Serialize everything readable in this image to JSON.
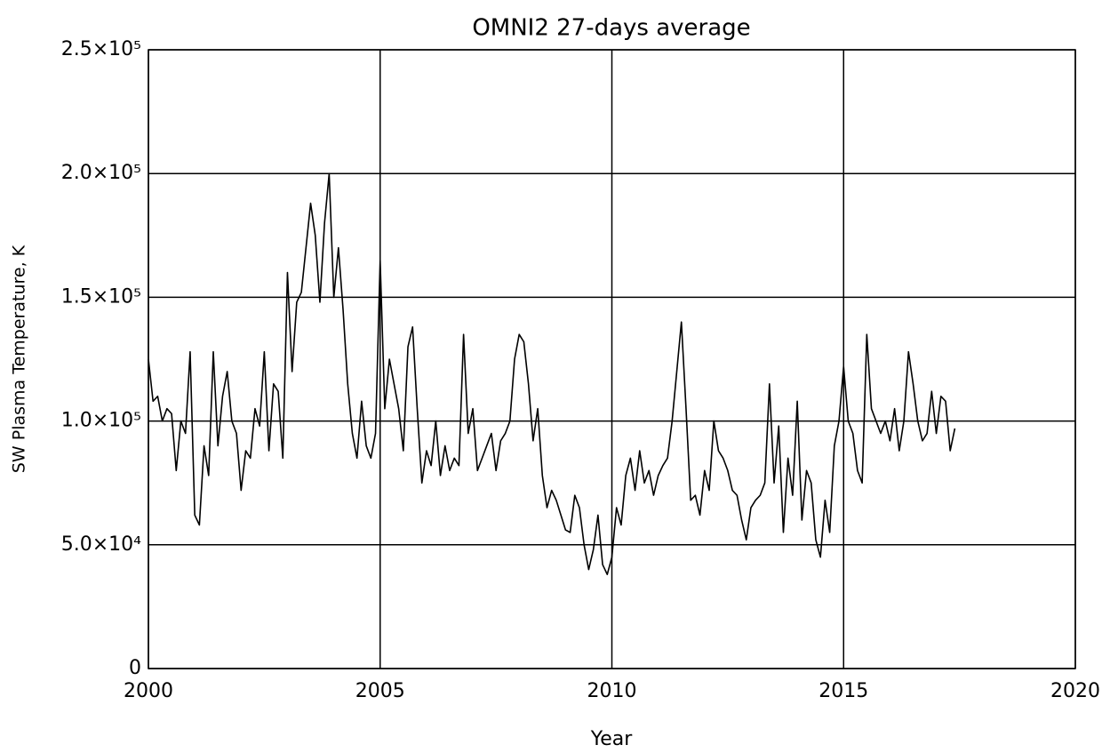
{
  "chart_data": {
    "type": "line",
    "title": "OMNI2 27-days average",
    "xlabel": "Year",
    "ylabel": "SW Plasma Temperature, K",
    "color": "#000000",
    "grid": true,
    "xlim": [
      2000,
      2020
    ],
    "xticks": [
      2000,
      2005,
      2010,
      2015,
      2020
    ],
    "ylim": [
      0,
      250000
    ],
    "yticks": [
      0,
      {
        "value": 50000,
        "label": "5.0×10⁴"
      },
      {
        "value": 100000,
        "label": "1.0×10⁵"
      },
      {
        "value": 150000,
        "label": "1.5×10⁵"
      },
      {
        "value": 200000,
        "label": "2.0×10⁵"
      },
      {
        "value": 250000,
        "label": "2.5×10⁵"
      }
    ],
    "x": [
      2000.0,
      2000.1,
      2000.2,
      2000.3,
      2000.4,
      2000.5,
      2000.6,
      2000.7,
      2000.8,
      2000.9,
      2001.0,
      2001.1,
      2001.2,
      2001.3,
      2001.4,
      2001.5,
      2001.6,
      2001.7,
      2001.8,
      2001.9,
      2002.0,
      2002.1,
      2002.2,
      2002.3,
      2002.4,
      2002.5,
      2002.6,
      2002.7,
      2002.8,
      2002.9,
      2003.0,
      2003.1,
      2003.2,
      2003.3,
      2003.4,
      2003.5,
      2003.6,
      2003.7,
      2003.8,
      2003.9,
      2004.0,
      2004.1,
      2004.2,
      2004.3,
      2004.4,
      2004.5,
      2004.6,
      2004.7,
      2004.8,
      2004.9,
      2005.0,
      2005.1,
      2005.2,
      2005.3,
      2005.4,
      2005.5,
      2005.6,
      2005.7,
      2005.8,
      2005.9,
      2006.0,
      2006.1,
      2006.2,
      2006.3,
      2006.4,
      2006.5,
      2006.6,
      2006.7,
      2006.8,
      2006.9,
      2007.0,
      2007.1,
      2007.2,
      2007.3,
      2007.4,
      2007.5,
      2007.6,
      2007.7,
      2007.8,
      2007.9,
      2008.0,
      2008.1,
      2008.2,
      2008.3,
      2008.4,
      2008.5,
      2008.6,
      2008.7,
      2008.8,
      2008.9,
      2009.0,
      2009.1,
      2009.2,
      2009.3,
      2009.4,
      2009.5,
      2009.6,
      2009.7,
      2009.8,
      2009.9,
      2010.0,
      2010.1,
      2010.2,
      2010.3,
      2010.4,
      2010.5,
      2010.6,
      2010.7,
      2010.8,
      2010.9,
      2011.0,
      2011.1,
      2011.2,
      2011.3,
      2011.4,
      2011.5,
      2011.6,
      2011.7,
      2011.8,
      2011.9,
      2012.0,
      2012.1,
      2012.2,
      2012.3,
      2012.4,
      2012.5,
      2012.6,
      2012.7,
      2012.8,
      2012.9,
      2013.0,
      2013.1,
      2013.2,
      2013.3,
      2013.4,
      2013.5,
      2013.6,
      2013.7,
      2013.8,
      2013.9,
      2014.0,
      2014.1,
      2014.2,
      2014.3,
      2014.4,
      2014.5,
      2014.6,
      2014.7,
      2014.8,
      2014.9,
      2015.0,
      2015.1,
      2015.2,
      2015.3,
      2015.4,
      2015.5,
      2015.6,
      2015.7,
      2015.8,
      2015.9,
      2016.0,
      2016.1,
      2016.2,
      2016.3,
      2016.4,
      2016.5,
      2016.6,
      2016.7,
      2016.8,
      2016.9,
      2017.0,
      2017.1,
      2017.2,
      2017.3,
      2017.4
    ],
    "values": [
      125000,
      108000,
      110000,
      100000,
      105000,
      103000,
      80000,
      100000,
      95000,
      128000,
      62000,
      58000,
      90000,
      78000,
      128000,
      90000,
      110000,
      120000,
      100000,
      95000,
      72000,
      88000,
      85000,
      105000,
      98000,
      128000,
      88000,
      115000,
      112000,
      85000,
      160000,
      120000,
      148000,
      152000,
      170000,
      188000,
      175000,
      148000,
      180000,
      200000,
      150000,
      170000,
      145000,
      115000,
      95000,
      85000,
      108000,
      90000,
      85000,
      95000,
      165000,
      105000,
      125000,
      115000,
      105000,
      88000,
      130000,
      138000,
      105000,
      75000,
      88000,
      82000,
      100000,
      78000,
      90000,
      80000,
      85000,
      82000,
      135000,
      95000,
      105000,
      80000,
      85000,
      90000,
      95000,
      80000,
      92000,
      95000,
      100000,
      125000,
      135000,
      132000,
      115000,
      92000,
      105000,
      78000,
      65000,
      72000,
      68000,
      62000,
      56000,
      55000,
      70000,
      65000,
      50000,
      40000,
      48000,
      62000,
      42000,
      38000,
      45000,
      65000,
      58000,
      78000,
      85000,
      72000,
      88000,
      75000,
      80000,
      70000,
      78000,
      82000,
      85000,
      100000,
      120000,
      140000,
      105000,
      68000,
      70000,
      62000,
      80000,
      72000,
      100000,
      88000,
      85000,
      80000,
      72000,
      70000,
      60000,
      52000,
      65000,
      68000,
      70000,
      75000,
      115000,
      75000,
      98000,
      55000,
      85000,
      70000,
      108000,
      60000,
      80000,
      75000,
      52000,
      45000,
      68000,
      55000,
      90000,
      100000,
      122000,
      100000,
      95000,
      80000,
      75000,
      135000,
      105000,
      100000,
      95000,
      100000,
      92000,
      105000,
      88000,
      100000,
      128000,
      115000,
      100000,
      92000,
      95000,
      112000,
      95000,
      110000,
      108000,
      88000,
      97000
    ]
  }
}
